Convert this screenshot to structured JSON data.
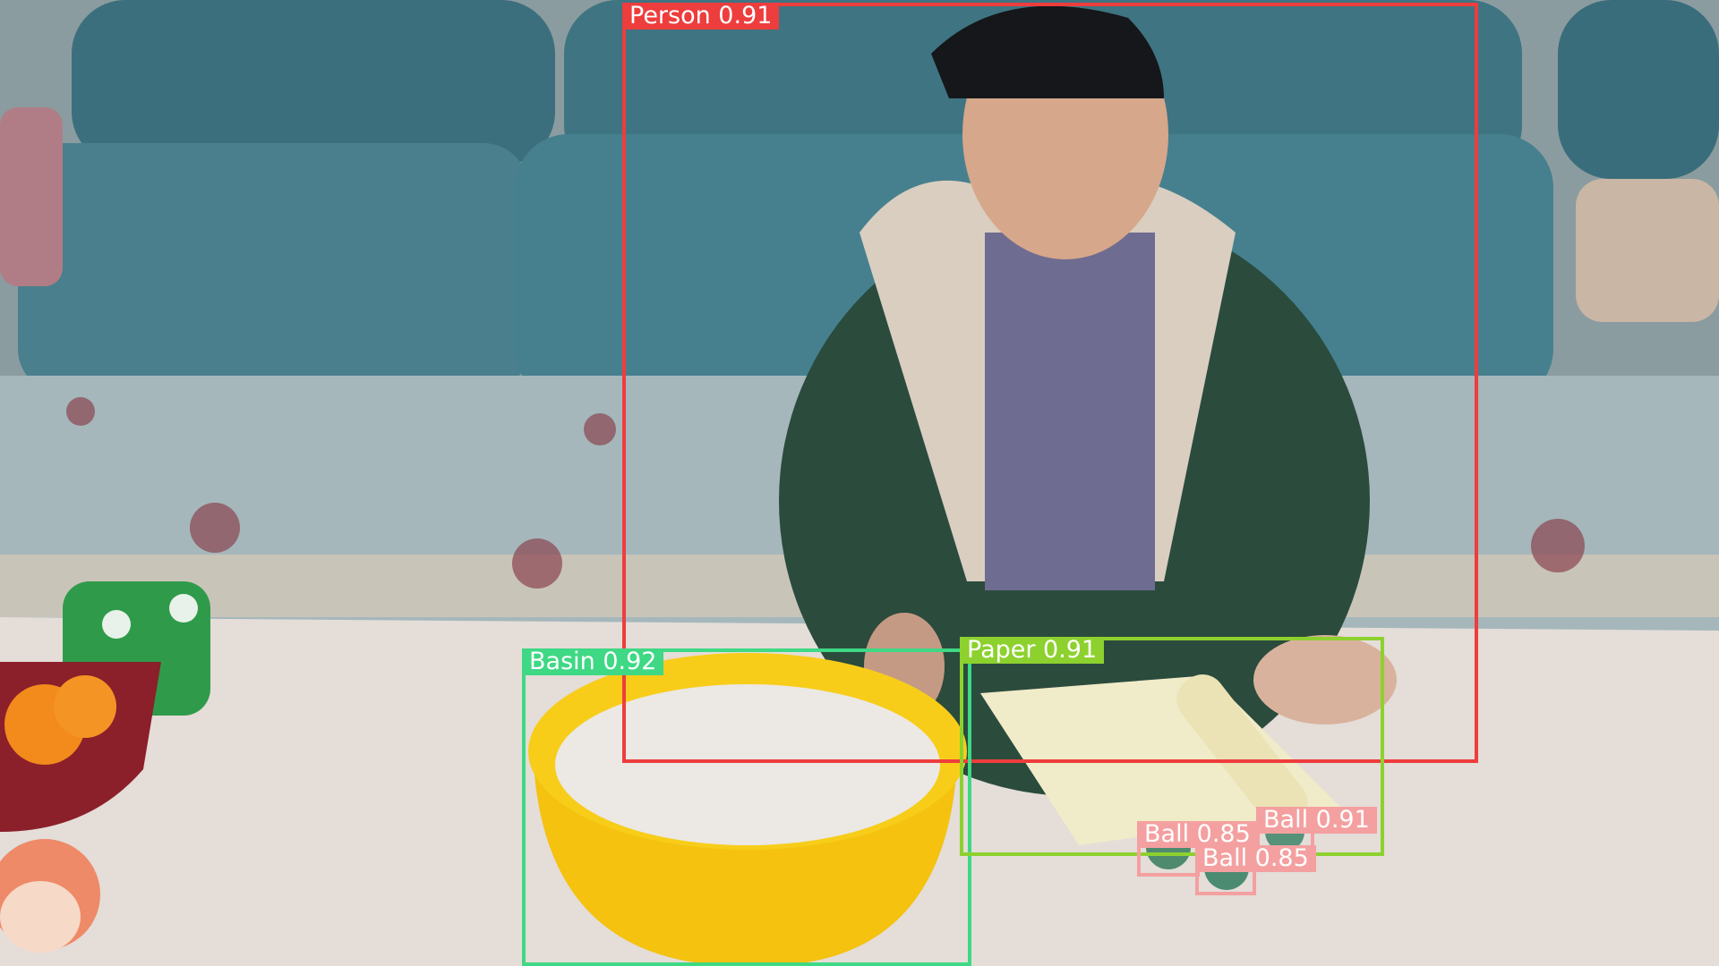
{
  "colors": {
    "person": "#ee3d3d",
    "basin": "#3fd884",
    "paper": "#8dd12e",
    "ball": "#f4a0a0"
  },
  "detections": [
    {
      "class_name": "Person",
      "score": "0.91",
      "label": "Person 0.91",
      "color": "person"
    },
    {
      "class_name": "Basin",
      "score": "0.92",
      "label": "Basin 0.92",
      "color": "basin"
    },
    {
      "class_name": "Paper",
      "score": "0.91",
      "label": "Paper 0.91",
      "color": "paper"
    },
    {
      "class_name": "Ball",
      "score": "0.85",
      "label": "Ball 0.85",
      "color": "ball"
    },
    {
      "class_name": "Ball",
      "score": "0.91",
      "label": "Ball 0.91",
      "color": "ball"
    },
    {
      "class_name": "Ball",
      "score": "0.85",
      "label": "Ball 0.85",
      "color": "ball"
    }
  ]
}
